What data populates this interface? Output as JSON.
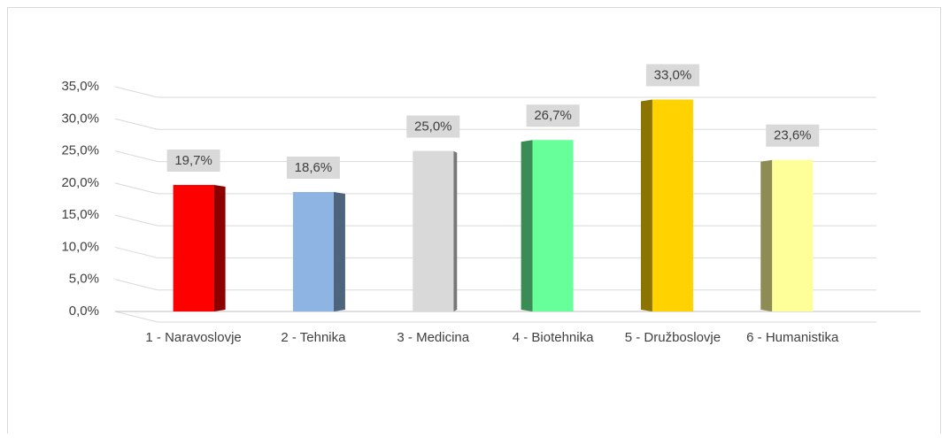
{
  "chart_data": {
    "type": "bar",
    "categories": [
      "1 - Naravoslovje",
      "2 - Tehnika",
      "3 - Medicina",
      "4 - Biotehnika",
      "5 - Družboslovje",
      "6 - Humanistika"
    ],
    "values": [
      19.7,
      18.6,
      25.0,
      26.7,
      33.0,
      23.6
    ],
    "value_labels": [
      "19,7%",
      "18,6%",
      "25,0%",
      "26,7%",
      "33,0%",
      "23,6%"
    ],
    "colors": [
      "#ff0000",
      "#8db4e2",
      "#d9d9d9",
      "#66ff99",
      "#ffd200",
      "#ffff99"
    ],
    "ylim": [
      0,
      35
    ],
    "yticks": [
      {
        "value": 0,
        "label": "0,0%"
      },
      {
        "value": 5,
        "label": "5,0%"
      },
      {
        "value": 10,
        "label": "10,0%"
      },
      {
        "value": 15,
        "label": "15,0%"
      },
      {
        "value": 20,
        "label": "20,0%"
      },
      {
        "value": 25,
        "label": "25,0%"
      },
      {
        "value": 30,
        "label": "30,0%"
      },
      {
        "value": 35,
        "label": "35,0%"
      }
    ],
    "grid": true
  }
}
